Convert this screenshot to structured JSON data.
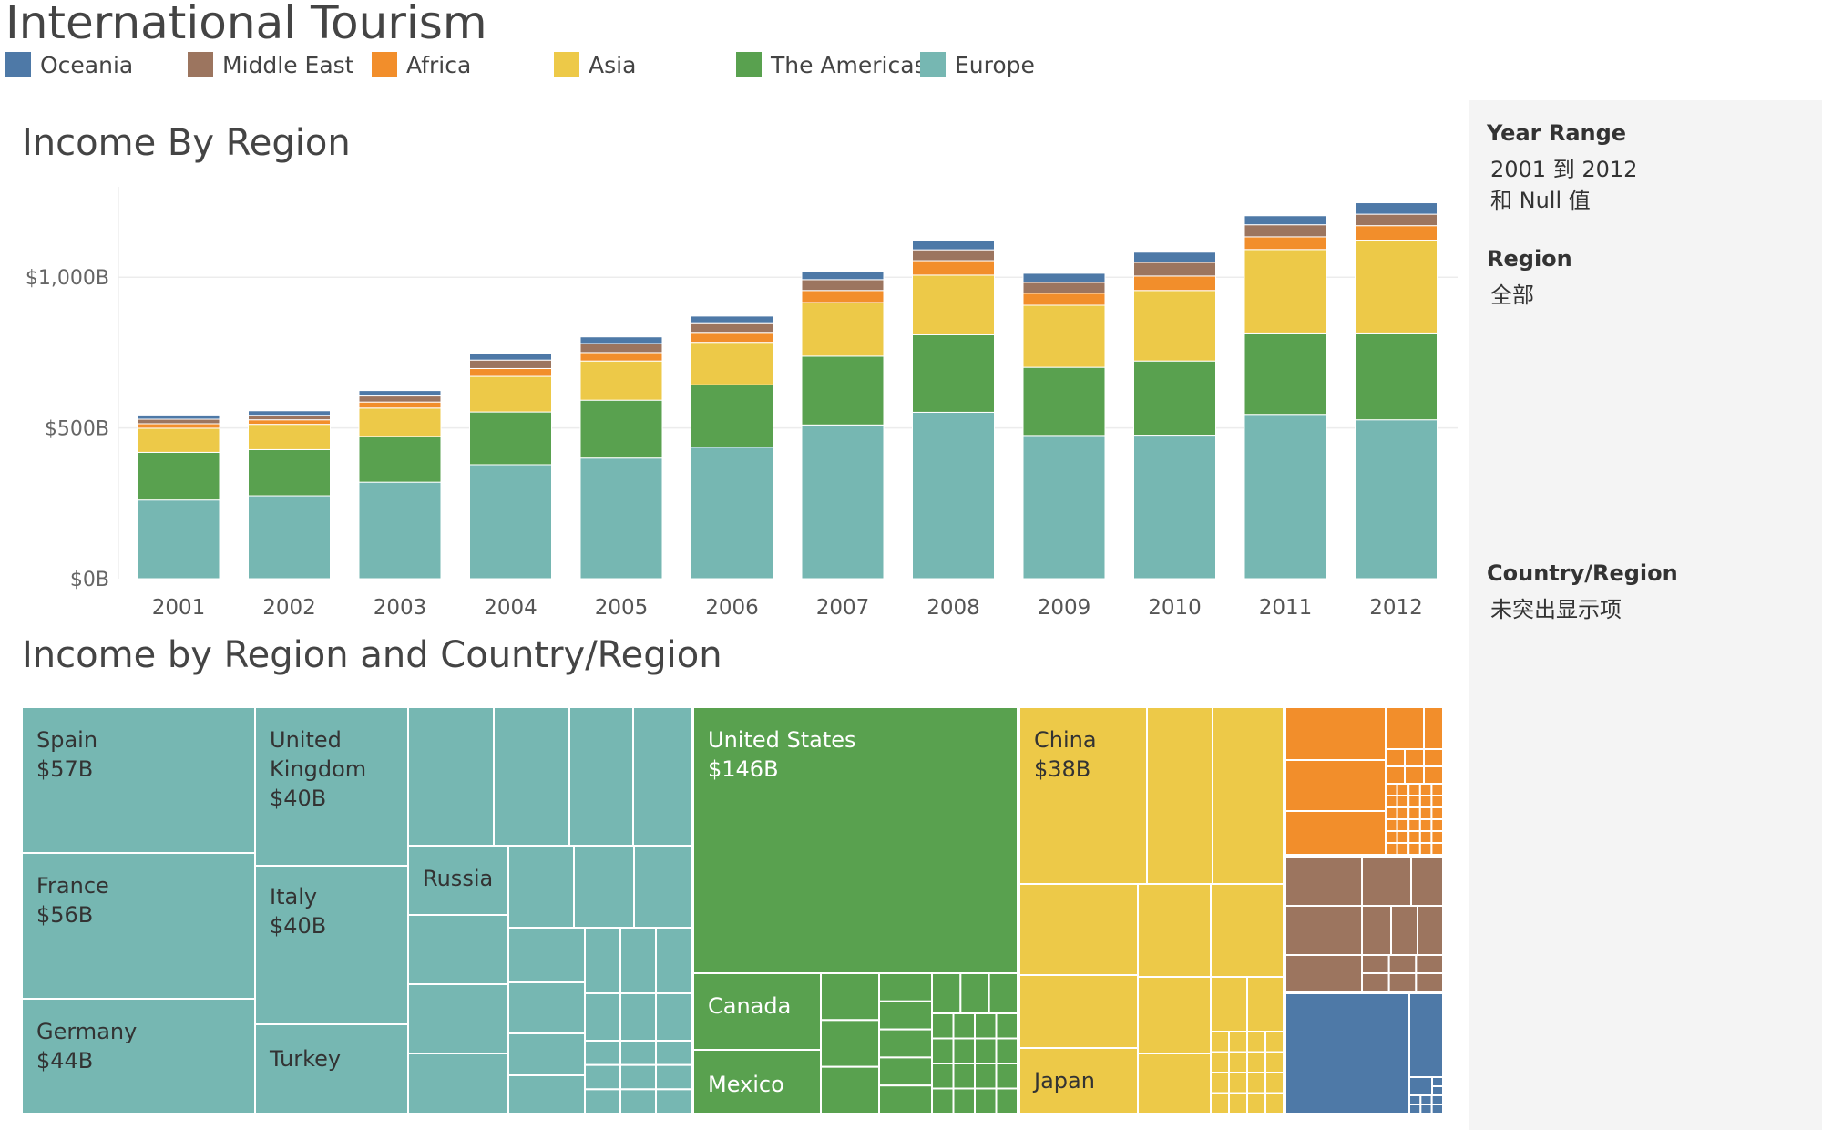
{
  "dashboard": {
    "title": "International Tourism"
  },
  "legend": [
    {
      "name": "Oceania",
      "color": "#4e79a7"
    },
    {
      "name": "Middle East",
      "color": "#9c755f"
    },
    {
      "name": "Africa",
      "color": "#f28e2b"
    },
    {
      "name": "Asia",
      "color": "#edc948"
    },
    {
      "name": "The Americas",
      "color": "#59a14f"
    },
    {
      "name": "Europe",
      "color": "#76b7b2"
    }
  ],
  "filters": {
    "year_range_label": "Year Range",
    "year_range_value": "2001 到 2012",
    "year_range_value2": "和 Null 值",
    "region_label": "Region",
    "region_value": "全部",
    "country_label": "Country/Region",
    "country_value": "未突出显示项"
  },
  "chart_data": [
    {
      "type": "bar",
      "stacked": true,
      "title": "Income By Region",
      "xlabel": "",
      "ylabel": "",
      "categories": [
        "2001",
        "2002",
        "2003",
        "2004",
        "2005",
        "2006",
        "2007",
        "2008",
        "2009",
        "2010",
        "2011",
        "2012"
      ],
      "y_ticks": [
        {
          "value": 0,
          "label": "$0B"
        },
        {
          "value": 500,
          "label": "$500B"
        },
        {
          "value": 1000,
          "label": "$1,000B"
        }
      ],
      "ylim": [
        0,
        1300
      ],
      "grid": true,
      "series": [
        {
          "name": "Europe",
          "color": "#76b7b2",
          "values": [
            261,
            275,
            320,
            378,
            400,
            436,
            510,
            552,
            475,
            476,
            545,
            527
          ]
        },
        {
          "name": "The Americas",
          "color": "#59a14f",
          "values": [
            158,
            153,
            152,
            175,
            192,
            207,
            228,
            257,
            226,
            246,
            270,
            288
          ]
        },
        {
          "name": "Asia",
          "color": "#edc948",
          "values": [
            80,
            84,
            94,
            118,
            130,
            141,
            178,
            198,
            206,
            234,
            277,
            308
          ]
        },
        {
          "name": "Africa",
          "color": "#f28e2b",
          "values": [
            15,
            15,
            20,
            26,
            28,
            33,
            40,
            48,
            40,
            48,
            42,
            48
          ]
        },
        {
          "name": "Middle East",
          "color": "#9c755f",
          "values": [
            15,
            15,
            20,
            28,
            30,
            32,
            36,
            36,
            36,
            45,
            40,
            38
          ]
        },
        {
          "name": "Oceania",
          "color": "#4e79a7",
          "values": [
            14,
            15,
            18,
            22,
            22,
            22,
            28,
            32,
            30,
            34,
            30,
            38
          ]
        }
      ]
    },
    {
      "type": "treemap",
      "title": "Income by Region and Country/Region",
      "groups": [
        {
          "region": "Europe",
          "color": "#76b7b2",
          "labeled": [
            {
              "name": "Spain",
              "value": "$57B"
            },
            {
              "name": "France",
              "value": "$56B"
            },
            {
              "name": "Germany",
              "value": "$44B"
            },
            {
              "name": "United Kingdom",
              "value": "$40B"
            },
            {
              "name": "Italy",
              "value": "$40B"
            },
            {
              "name": "Turkey",
              "value": ""
            },
            {
              "name": "Russia",
              "value": ""
            }
          ]
        },
        {
          "region": "The Americas",
          "color": "#59a14f",
          "labeled": [
            {
              "name": "United States",
              "value": "$146B"
            },
            {
              "name": "Canada",
              "value": ""
            },
            {
              "name": "Mexico",
              "value": ""
            }
          ]
        },
        {
          "region": "Asia",
          "color": "#edc948",
          "labeled": [
            {
              "name": "China",
              "value": "$38B"
            },
            {
              "name": "Japan",
              "value": ""
            }
          ]
        },
        {
          "region": "Africa",
          "color": "#f28e2b",
          "labeled": []
        },
        {
          "region": "Middle East",
          "color": "#9c755f",
          "labeled": []
        },
        {
          "region": "Oceania",
          "color": "#4e79a7",
          "labeled": []
        }
      ]
    }
  ]
}
